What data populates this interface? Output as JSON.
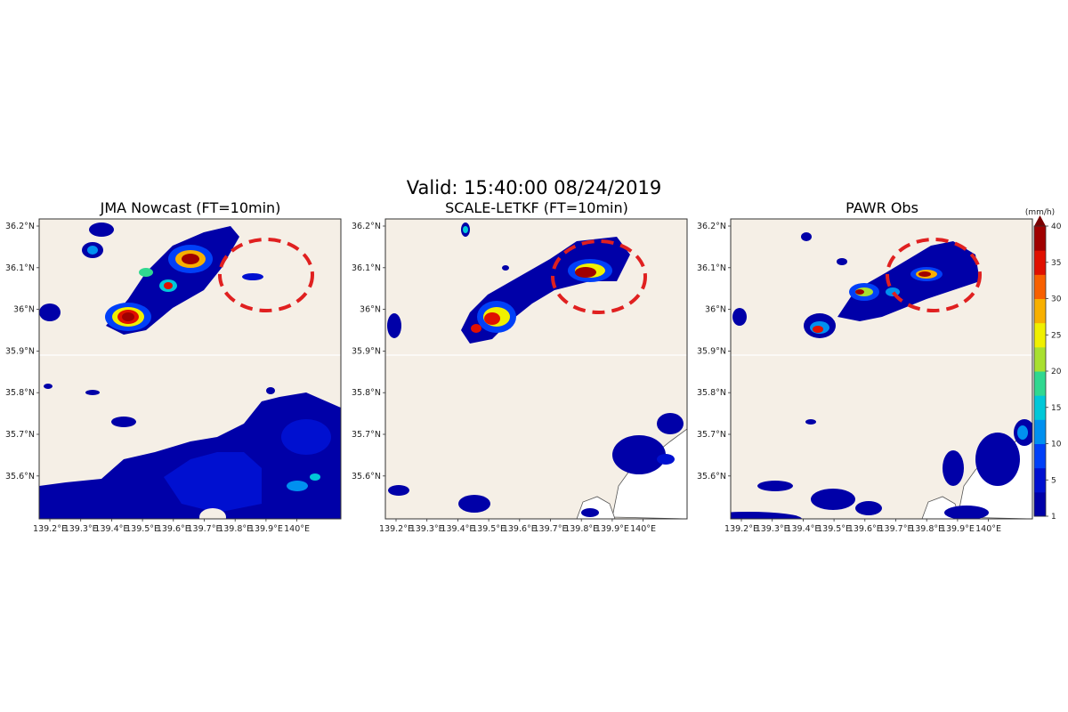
{
  "figure": {
    "title": "Valid: 15:40:00 08/24/2019",
    "panels": [
      {
        "title": "JMA Nowcast (FT=10min)"
      },
      {
        "title": "SCALE-LETKF (FT=10min)"
      },
      {
        "title": "PAWR Obs"
      }
    ],
    "lon_labels": [
      "139.2°E",
      "139.3°E",
      "139.4°E",
      "139.5°E",
      "139.6°E",
      "139.7°E",
      "139.8°E",
      "139.9°E",
      "140°E"
    ],
    "lat_labels": [
      "36.2°N",
      "36.1°N",
      "36°N",
      "35.9°N",
      "35.8°N",
      "35.7°N",
      "35.6°N"
    ],
    "colorbar": {
      "unit": "(mm/h)",
      "ticks": [
        "1",
        "5",
        "10",
        "15",
        "20",
        "25",
        "30",
        "35",
        "40"
      ],
      "colors": [
        "#0000a8",
        "#0010d0",
        "#0040f8",
        "#0090f0",
        "#00c8d8",
        "#30d890",
        "#a8e030",
        "#f0f000",
        "#f8b000",
        "#f86000",
        "#e01000",
        "#a00000"
      ]
    },
    "colors": {
      "land": "#f5efe6",
      "sea": "#ffffff",
      "highlight_circle": "#e02020"
    }
  }
}
